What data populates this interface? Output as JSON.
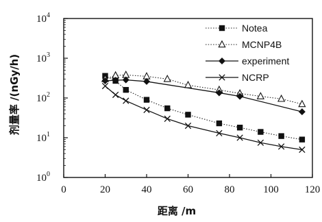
{
  "chart_data": {
    "type": "line",
    "title": "",
    "xlabel": "距离 /m",
    "ylabel": "剂量率 /(nGy/h)",
    "xlim": [
      0,
      120
    ],
    "ylim": [
      1,
      10000
    ],
    "yscale": "log",
    "xticks": [
      "0",
      "20",
      "40",
      "60",
      "80",
      "100",
      "120"
    ],
    "yticks": [
      {
        "base": "10",
        "exp": "0"
      },
      {
        "base": "10",
        "exp": "1"
      },
      {
        "base": "10",
        "exp": "2"
      },
      {
        "base": "10",
        "exp": "3"
      },
      {
        "base": "10",
        "exp": "4"
      }
    ],
    "grid": false,
    "legend_position": "top-right",
    "series": [
      {
        "name": "Notea",
        "marker": "filled-square",
        "line": "dotted",
        "x": [
          20,
          25,
          30,
          40,
          50,
          60,
          75,
          85,
          95,
          105,
          115
        ],
        "y": [
          360,
          270,
          160,
          90,
          55,
          38,
          23,
          18,
          14,
          11,
          9
        ]
      },
      {
        "name": "MCNP4B",
        "marker": "open-triangle",
        "line": "dotted",
        "x": [
          20,
          25,
          30,
          40,
          50,
          60,
          75,
          85,
          95,
          105,
          115
        ],
        "y": [
          300,
          370,
          380,
          350,
          300,
          210,
          160,
          130,
          110,
          95,
          70
        ]
      },
      {
        "name": "experiment",
        "marker": "filled-diamond",
        "line": "solid",
        "x": [
          20,
          25,
          30,
          40,
          75,
          85,
          115
        ],
        "y": [
          270,
          280,
          285,
          260,
          135,
          110,
          45
        ]
      },
      {
        "name": "NCRP",
        "marker": "x",
        "line": "solid",
        "x": [
          20,
          25,
          30,
          40,
          50,
          60,
          75,
          85,
          95,
          105,
          115
        ],
        "y": [
          200,
          120,
          85,
          50,
          30,
          20,
          13,
          10,
          7.5,
          6,
          5
        ]
      }
    ]
  }
}
